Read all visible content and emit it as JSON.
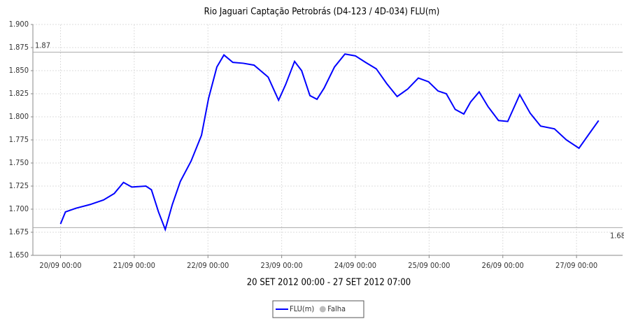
{
  "chart_data": {
    "type": "line",
    "title": "Rio Jaguari Captação Petrobrás (D4-123 / 4D-034) FLU(m)",
    "xlabel": "20 SET 2012 00:00 - 27 SET 2012 07:00",
    "x": [
      0,
      1.6,
      5,
      9.6,
      14,
      17.5,
      20.5,
      23.2,
      27.8,
      29.6,
      31.9,
      34.1,
      36.4,
      39,
      42.5,
      45.9,
      48.2,
      50.9,
      53.2,
      56.1,
      59.5,
      63,
      67.6,
      71,
      73.3,
      76.2,
      78.5,
      81.2,
      83.5,
      85.8,
      89.2,
      92.6,
      96,
      99.3,
      102.8,
      106.2,
      109.6,
      113,
      116.5,
      119.8,
      122.9,
      125.6,
      128.5,
      131.3,
      133.5,
      136.3,
      139.2,
      142.6,
      145.6,
      149.5,
      152.9,
      156.3,
      160.8,
      164.7,
      168.8,
      172.2,
      175.2
    ],
    "series": [
      {
        "name": "FLU(m)",
        "color": "#0000ff",
        "values": [
          1.684,
          1.697,
          1.701,
          1.705,
          1.71,
          1.717,
          1.729,
          1.724,
          1.725,
          1.721,
          1.697,
          1.678,
          1.705,
          1.73,
          1.752,
          1.78,
          1.82,
          1.854,
          1.867,
          1.859,
          1.858,
          1.856,
          1.843,
          1.818,
          1.835,
          1.86,
          1.85,
          1.823,
          1.819,
          1.831,
          1.854,
          1.868,
          1.866,
          1.859,
          1.852,
          1.836,
          1.822,
          1.83,
          1.842,
          1.838,
          1.828,
          1.825,
          1.808,
          1.803,
          1.816,
          1.827,
          1.811,
          1.796,
          1.795,
          1.824,
          1.804,
          1.79,
          1.787,
          1.775,
          1.766,
          1.782,
          1.796
        ]
      }
    ],
    "legend_items": [
      {
        "name": "Falha",
        "color": "#bbbbbb"
      }
    ],
    "markers": [
      {
        "value": 1.87,
        "label": "1.87"
      },
      {
        "value": 1.68,
        "label": "1.68"
      }
    ],
    "xlim": [
      -9,
      183
    ],
    "ylim": [
      1.65,
      1.9
    ],
    "xticks": [
      {
        "value": 0,
        "label": "20/09 00:00"
      },
      {
        "value": 24,
        "label": "21/09 00:00"
      },
      {
        "value": 48,
        "label": "22/09 00:00"
      },
      {
        "value": 72,
        "label": "23/09 00:00"
      },
      {
        "value": 96,
        "label": "24/09 00:00"
      },
      {
        "value": 120,
        "label": "25/09 00:00"
      },
      {
        "value": 144,
        "label": "26/09 00:00"
      },
      {
        "value": 168,
        "label": "27/09 00:00"
      }
    ],
    "yticks": [
      {
        "value": 1.65,
        "label": "1.650"
      },
      {
        "value": 1.675,
        "label": "1.675"
      },
      {
        "value": 1.7,
        "label": "1.700"
      },
      {
        "value": 1.725,
        "label": "1.725"
      },
      {
        "value": 1.75,
        "label": "1.750"
      },
      {
        "value": 1.775,
        "label": "1.775"
      },
      {
        "value": 1.8,
        "label": "1.800"
      },
      {
        "value": 1.825,
        "label": "1.825"
      },
      {
        "value": 1.85,
        "label": "1.850"
      },
      {
        "value": 1.875,
        "label": "1.875"
      },
      {
        "value": 1.9,
        "label": "1.900"
      }
    ],
    "grid": true
  }
}
